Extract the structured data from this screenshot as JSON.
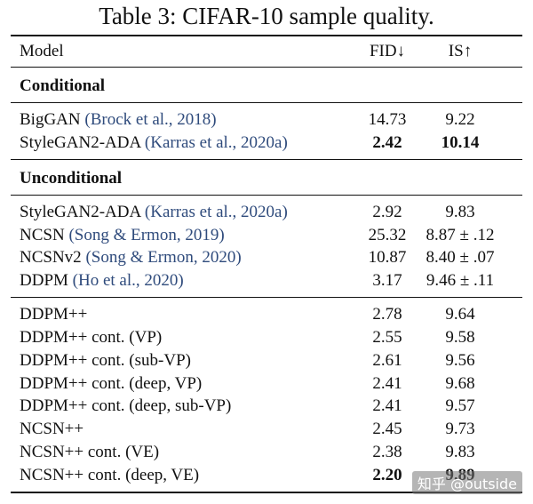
{
  "title": "Table 3: CIFAR-10 sample quality.",
  "header": [
    "Model",
    "FID↓",
    "IS↑"
  ],
  "sections": [
    {
      "heading": "Conditional",
      "rows": [
        {
          "model": "BigGAN",
          "cite": "(Brock et al., 2018)",
          "fid": "14.73",
          "is": "9.22"
        },
        {
          "model": "StyleGAN2-ADA",
          "cite": "(Karras et al., 2020a)",
          "fid": "2.42",
          "is": "10.14",
          "bold_fid": true,
          "bold_is": true
        }
      ]
    },
    {
      "heading": "Unconditional",
      "rows": [
        {
          "model": "StyleGAN2-ADA",
          "cite": "(Karras et al., 2020a)",
          "fid": "2.92",
          "is": "9.83"
        },
        {
          "model": "NCSN",
          "cite": "(Song & Ermon, 2019)",
          "fid": "25.32",
          "is": "8.87 ± .12"
        },
        {
          "model": "NCSNv2",
          "cite": "(Song & Ermon, 2020)",
          "fid": "10.87",
          "is": "8.40 ± .07"
        },
        {
          "model": "DDPM",
          "cite": "(Ho et al., 2020)",
          "fid": "3.17",
          "is": "9.46 ± .11"
        }
      ]
    },
    {
      "rows": [
        {
          "model": "DDPM++",
          "fid": "2.78",
          "is": "9.64"
        },
        {
          "model": "DDPM++ cont. (VP)",
          "fid": "2.55",
          "is": "9.58"
        },
        {
          "model": "DDPM++ cont. (sub-VP)",
          "fid": "2.61",
          "is": "9.56"
        },
        {
          "model": "DDPM++ cont. (deep, VP)",
          "fid": "2.41",
          "is": "9.68"
        },
        {
          "model": "DDPM++ cont. (deep, sub-VP)",
          "fid": "2.41",
          "is": "9.57"
        },
        {
          "model": "NCSN++",
          "fid": "2.45",
          "is": "9.73"
        },
        {
          "model": "NCSN++ cont. (VE)",
          "fid": "2.38",
          "is": "9.83"
        },
        {
          "model": "NCSN++ cont. (deep, VE)",
          "fid": "2.20",
          "is": "9.89",
          "bold_fid": true,
          "bold_is": true
        }
      ]
    }
  ],
  "watermark": "知乎 @outside"
}
